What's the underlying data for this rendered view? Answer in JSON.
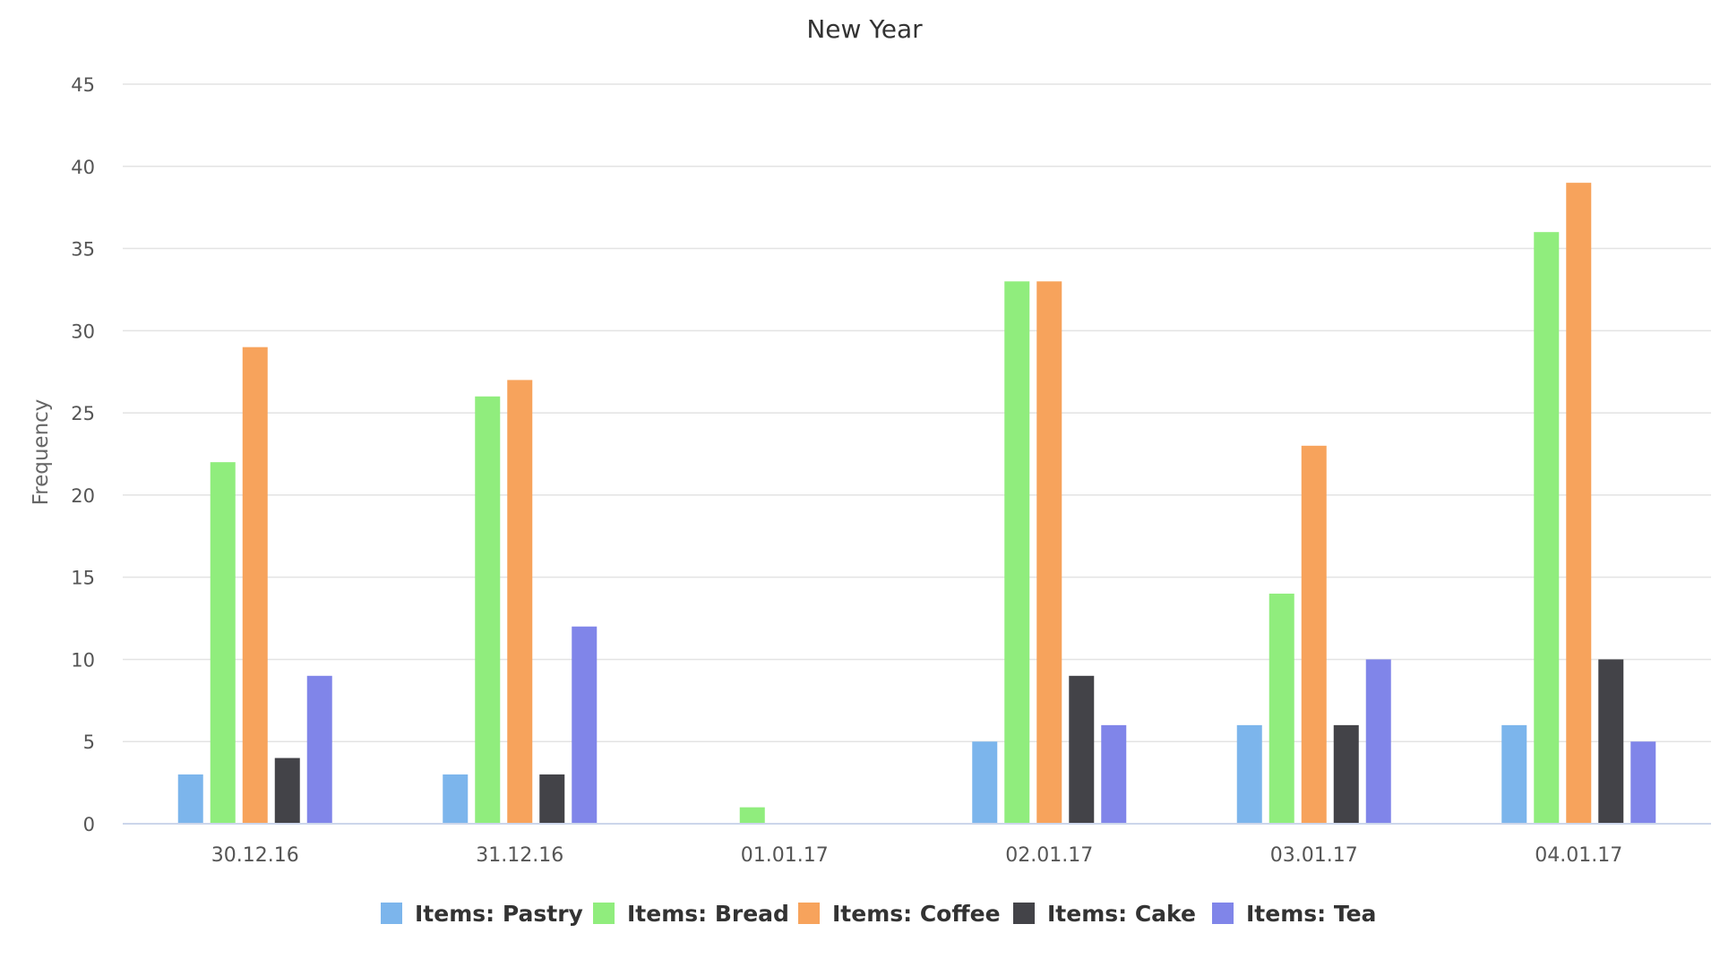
{
  "chart_data": {
    "type": "bar",
    "title": "New Year",
    "xlabel": "",
    "ylabel": "Frequency",
    "ylim": [
      0,
      45
    ],
    "yticks": [
      0,
      5,
      10,
      15,
      20,
      25,
      30,
      35,
      40,
      45
    ],
    "grid": true,
    "legend_position": "bottom",
    "categories": [
      "30.12.16",
      "31.12.16",
      "01.01.17",
      "02.01.17",
      "03.01.17",
      "04.01.17"
    ],
    "series": [
      {
        "name": "Items: Pastry",
        "color": "#7cb5ec",
        "values": [
          3,
          3,
          0,
          5,
          6,
          6
        ]
      },
      {
        "name": "Items: Bread",
        "color": "#90ed7d",
        "values": [
          22,
          26,
          1,
          33,
          14,
          36
        ]
      },
      {
        "name": "Items: Coffee",
        "color": "#f7a35c",
        "values": [
          29,
          27,
          0,
          33,
          23,
          39
        ]
      },
      {
        "name": "Items: Cake",
        "color": "#434348",
        "values": [
          4,
          3,
          0,
          9,
          6,
          10
        ]
      },
      {
        "name": "Items: Tea",
        "color": "#8085e9",
        "values": [
          9,
          12,
          0,
          6,
          10,
          5
        ]
      }
    ]
  }
}
